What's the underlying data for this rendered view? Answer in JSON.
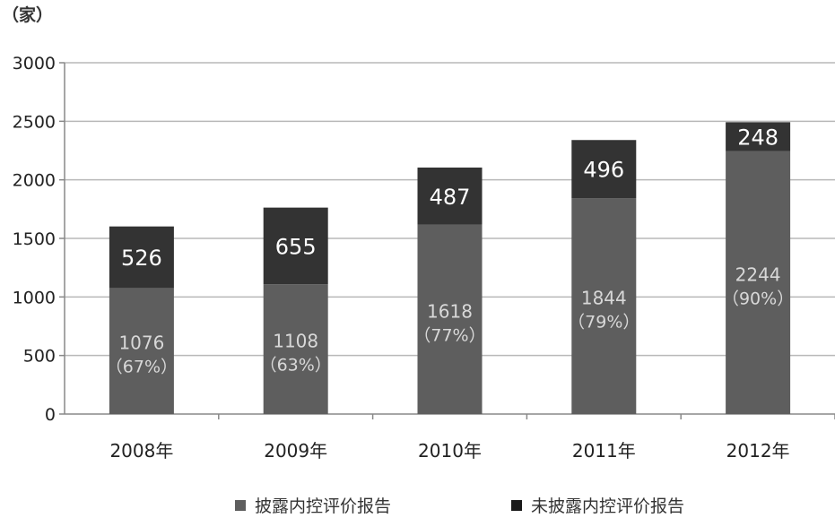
{
  "chart_data": {
    "type": "bar",
    "stacked": true,
    "unit_label": "（家）",
    "categories": [
      "2008年",
      "2009年",
      "2010年",
      "2011年",
      "2012年"
    ],
    "ylim": [
      0,
      3000
    ],
    "yticks": [
      0,
      500,
      1000,
      1500,
      2000,
      2500,
      3000
    ],
    "grid": true,
    "legend_position": "bottom",
    "series": [
      {
        "name": "披露内控评价报告",
        "values": [
          1076,
          1108,
          1618,
          1844,
          2244
        ],
        "labels": [
          "1076",
          "1108",
          "1618",
          "1844",
          "2244"
        ],
        "percent_labels": [
          "（67%）",
          "（63%）",
          "（77%）",
          "（79%）",
          "（90%）"
        ],
        "color": "#5e5e5e"
      },
      {
        "name": "未披露内控评价报告",
        "values": [
          526,
          655,
          487,
          496,
          248
        ],
        "labels": [
          "526",
          "655",
          "487",
          "496",
          "248"
        ],
        "color": "#333333"
      }
    ]
  }
}
